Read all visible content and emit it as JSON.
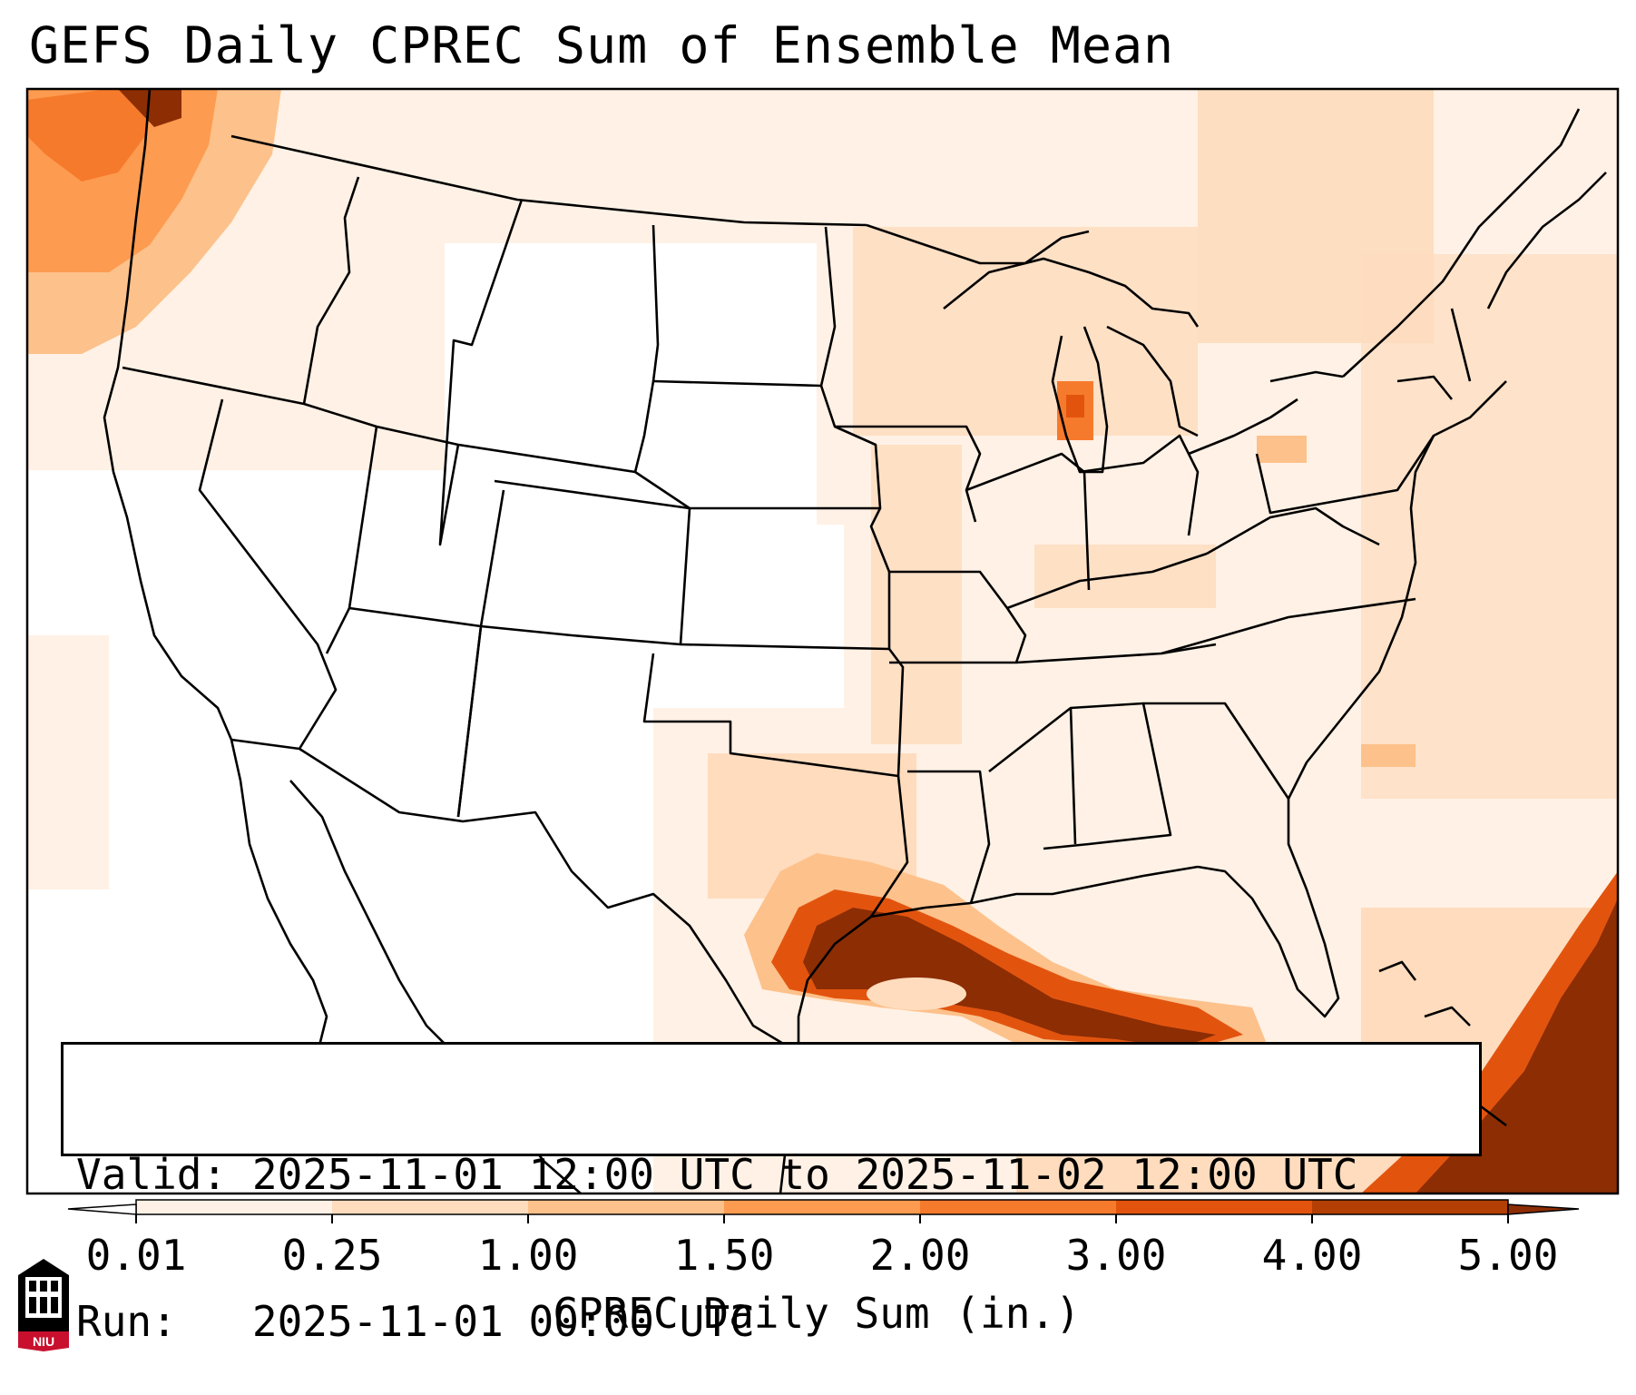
{
  "title": "GEFS Daily CPREC Sum of Ensemble Mean",
  "info": {
    "valid_label": "Valid:",
    "valid_value": "2025-11-01 12:00 UTC to 2025-11-02 12:00 UTC",
    "run_label": "Run:",
    "run_value": "2025-11-01 00:00 UTC"
  },
  "colorbar": {
    "title": "CPREC Daily Sum (in.)",
    "ticks": [
      "0.01",
      "0.25",
      "1.00",
      "1.50",
      "2.00",
      "3.00",
      "4.00",
      "5.00"
    ],
    "colors": [
      "#fff1e5",
      "#fedcbd",
      "#fdc18b",
      "#fd9b50",
      "#f67a2c",
      "#e2540e",
      "#b33f04"
    ],
    "under_color": "#ffffff",
    "over_color": "#8c2d04",
    "extend": "both"
  },
  "logo": {
    "text": "NIU",
    "accent": "#c8102e"
  }
}
